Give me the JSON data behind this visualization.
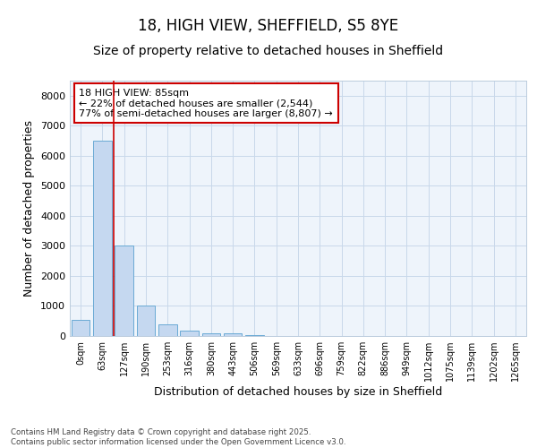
{
  "title1": "18, HIGH VIEW, SHEFFIELD, S5 8YE",
  "title2": "Size of property relative to detached houses in Sheffield",
  "xlabel": "Distribution of detached houses by size in Sheffield",
  "ylabel": "Number of detached properties",
  "bar_labels": [
    "0sqm",
    "63sqm",
    "127sqm",
    "190sqm",
    "253sqm",
    "316sqm",
    "380sqm",
    "443sqm",
    "506sqm",
    "569sqm",
    "633sqm",
    "696sqm",
    "759sqm",
    "822sqm",
    "886sqm",
    "949sqm",
    "1012sqm",
    "1075sqm",
    "1139sqm",
    "1202sqm",
    "1265sqm"
  ],
  "bar_values": [
    550,
    6500,
    3000,
    1000,
    380,
    175,
    100,
    75,
    30,
    0,
    0,
    0,
    0,
    0,
    0,
    0,
    0,
    0,
    0,
    0,
    0
  ],
  "bar_color": "#c5d8f0",
  "bar_edge_color": "#6aaad4",
  "vline_x": 1.5,
  "vline_color": "#cc0000",
  "annotation_text": "18 HIGH VIEW: 85sqm\n← 22% of detached houses are smaller (2,544)\n77% of semi-detached houses are larger (8,807) →",
  "annotation_box_color": "#cc0000",
  "ylim": [
    0,
    8500
  ],
  "yticks": [
    0,
    1000,
    2000,
    3000,
    4000,
    5000,
    6000,
    7000,
    8000
  ],
  "grid_color": "#c8d8ea",
  "background_color": "#ffffff",
  "plot_bg_color": "#eef4fb",
  "footer_text": "Contains HM Land Registry data © Crown copyright and database right 2025.\nContains public sector information licensed under the Open Government Licence v3.0.",
  "title_fontsize": 12,
  "subtitle_fontsize": 10,
  "tick_fontsize": 7,
  "ylabel_fontsize": 9,
  "xlabel_fontsize": 9,
  "ann_fontsize": 8
}
